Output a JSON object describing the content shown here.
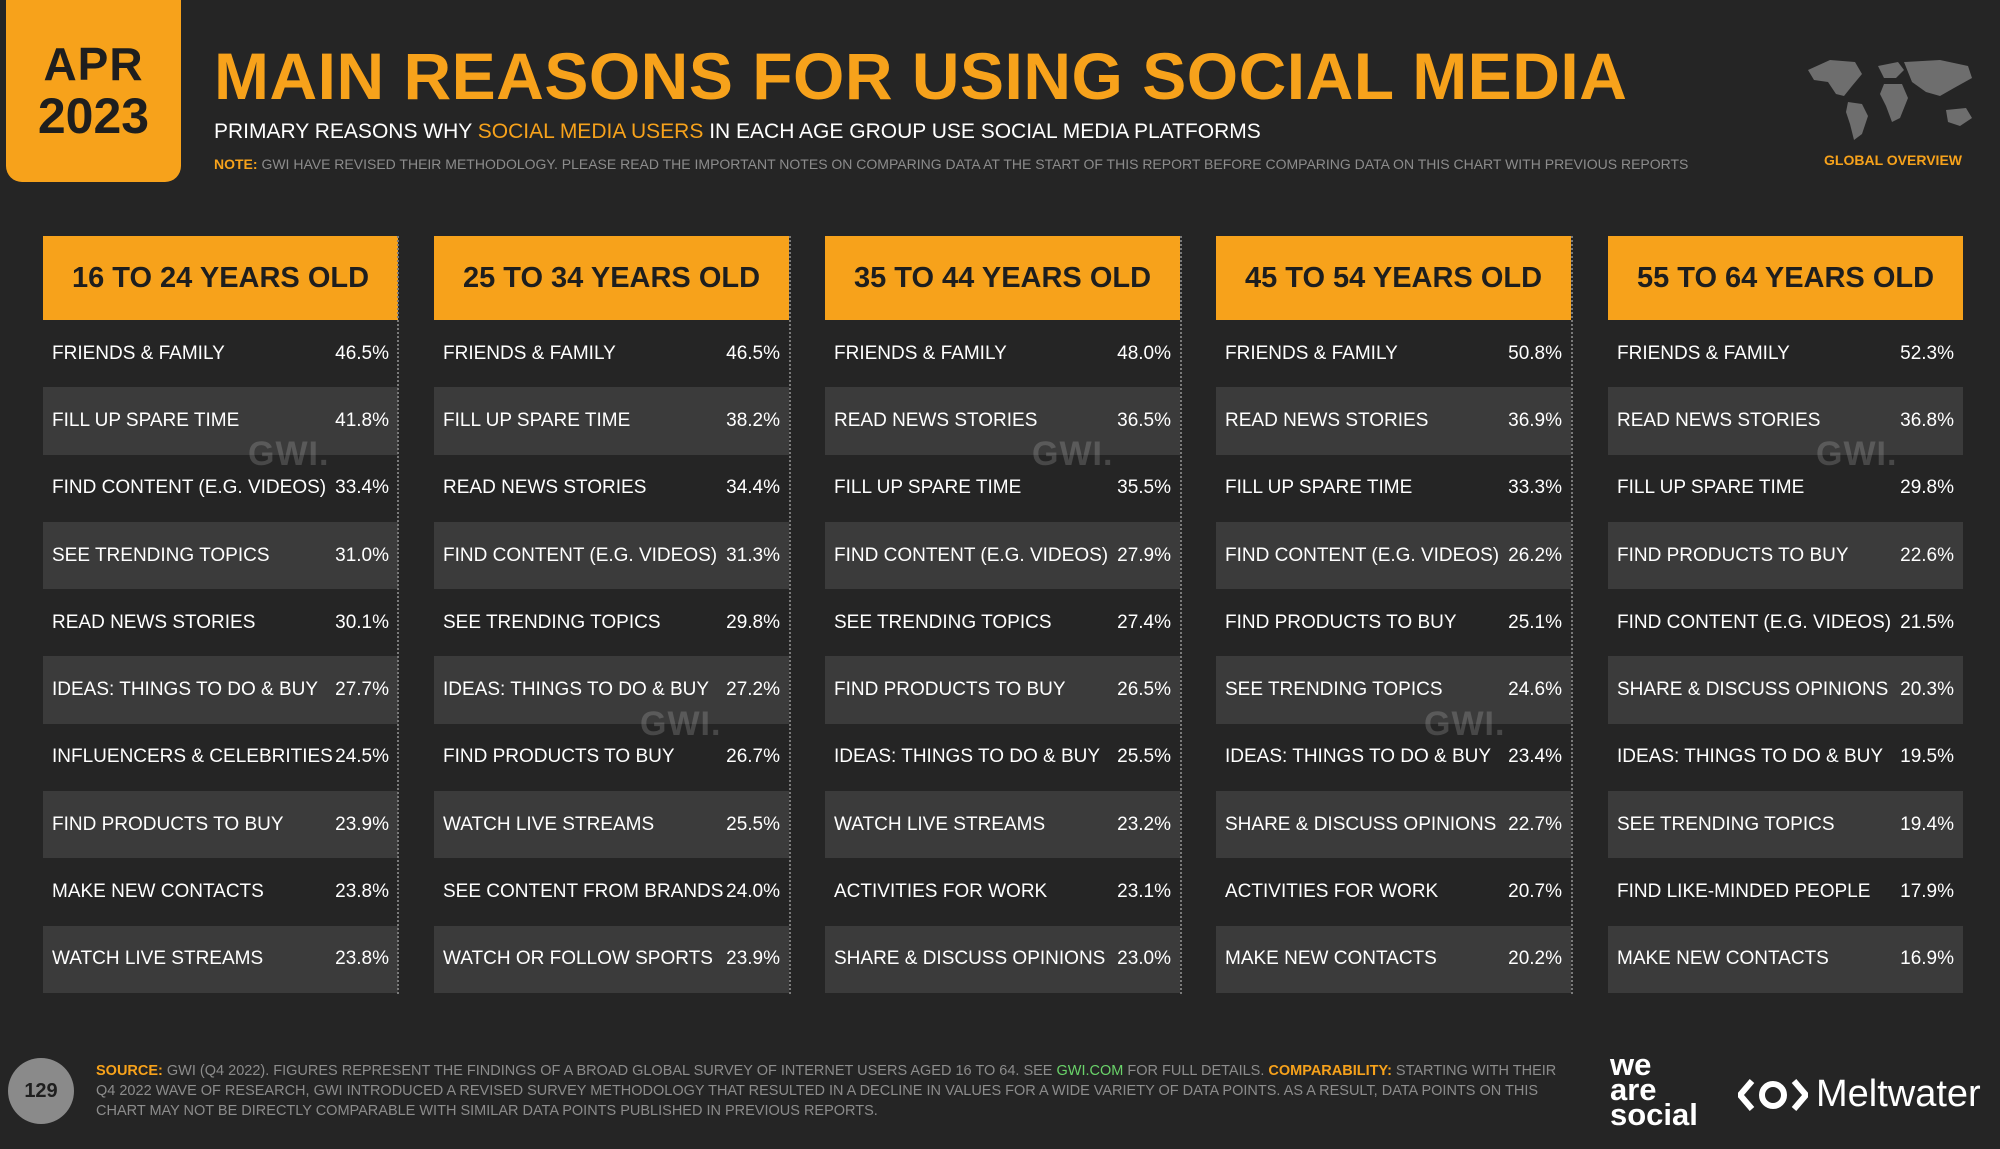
{
  "badge": {
    "month": "APR",
    "year": "2023"
  },
  "header": {
    "title": "MAIN REASONS FOR USING SOCIAL MEDIA",
    "subtitle_pre": "PRIMARY REASONS WHY ",
    "subtitle_hl": "SOCIAL MEDIA USERS",
    "subtitle_post": " IN EACH AGE GROUP USE SOCIAL MEDIA PLATFORMS",
    "note_label": "NOTE:",
    "note_text": " GWI HAVE REVISED THEIR METHODOLOGY. PLEASE READ THE IMPORTANT NOTES ON COMPARING DATA AT THE START OF THIS REPORT BEFORE COMPARING DATA ON THIS CHART WITH PREVIOUS REPORTS",
    "global_label": "GLOBAL OVERVIEW",
    "map_icon": "world-map-icon"
  },
  "watermark": "GWI.",
  "chart_data": {
    "type": "table",
    "unit": "%",
    "columns": [
      {
        "title": "16 TO 24 YEARS OLD",
        "rows": [
          {
            "label": "FRIENDS & FAMILY",
            "value": "46.5%"
          },
          {
            "label": "FILL UP SPARE TIME",
            "value": "41.8%"
          },
          {
            "label": "FIND CONTENT (E.G. VIDEOS)",
            "value": "33.4%"
          },
          {
            "label": "SEE TRENDING TOPICS",
            "value": "31.0%"
          },
          {
            "label": "READ NEWS STORIES",
            "value": "30.1%"
          },
          {
            "label": "IDEAS: THINGS TO DO & BUY",
            "value": "27.7%"
          },
          {
            "label": "INFLUENCERS & CELEBRITIES",
            "value": "24.5%"
          },
          {
            "label": "FIND PRODUCTS TO BUY",
            "value": "23.9%"
          },
          {
            "label": "MAKE NEW CONTACTS",
            "value": "23.8%"
          },
          {
            "label": "WATCH LIVE STREAMS",
            "value": "23.8%"
          }
        ]
      },
      {
        "title": "25 TO 34 YEARS OLD",
        "rows": [
          {
            "label": "FRIENDS & FAMILY",
            "value": "46.5%"
          },
          {
            "label": "FILL UP SPARE TIME",
            "value": "38.2%"
          },
          {
            "label": "READ NEWS STORIES",
            "value": "34.4%"
          },
          {
            "label": "FIND CONTENT (E.G. VIDEOS)",
            "value": "31.3%"
          },
          {
            "label": "SEE TRENDING TOPICS",
            "value": "29.8%"
          },
          {
            "label": "IDEAS: THINGS TO DO & BUY",
            "value": "27.2%"
          },
          {
            "label": "FIND PRODUCTS TO BUY",
            "value": "26.7%"
          },
          {
            "label": "WATCH LIVE STREAMS",
            "value": "25.5%"
          },
          {
            "label": "SEE CONTENT FROM BRANDS",
            "value": "24.0%"
          },
          {
            "label": "WATCH OR FOLLOW SPORTS",
            "value": "23.9%"
          }
        ]
      },
      {
        "title": "35 TO 44 YEARS OLD",
        "rows": [
          {
            "label": "FRIENDS & FAMILY",
            "value": "48.0%"
          },
          {
            "label": "READ NEWS STORIES",
            "value": "36.5%"
          },
          {
            "label": "FILL UP SPARE TIME",
            "value": "35.5%"
          },
          {
            "label": "FIND CONTENT (E.G. VIDEOS)",
            "value": "27.9%"
          },
          {
            "label": "SEE TRENDING TOPICS",
            "value": "27.4%"
          },
          {
            "label": "FIND PRODUCTS TO BUY",
            "value": "26.5%"
          },
          {
            "label": "IDEAS: THINGS TO DO & BUY",
            "value": "25.5%"
          },
          {
            "label": "WATCH LIVE STREAMS",
            "value": "23.2%"
          },
          {
            "label": "ACTIVITIES FOR WORK",
            "value": "23.1%"
          },
          {
            "label": "SHARE & DISCUSS OPINIONS",
            "value": "23.0%"
          }
        ]
      },
      {
        "title": "45 TO 54 YEARS OLD",
        "rows": [
          {
            "label": "FRIENDS & FAMILY",
            "value": "50.8%"
          },
          {
            "label": "READ NEWS STORIES",
            "value": "36.9%"
          },
          {
            "label": "FILL UP SPARE TIME",
            "value": "33.3%"
          },
          {
            "label": "FIND CONTENT (E.G. VIDEOS)",
            "value": "26.2%"
          },
          {
            "label": "FIND PRODUCTS TO BUY",
            "value": "25.1%"
          },
          {
            "label": "SEE TRENDING TOPICS",
            "value": "24.6%"
          },
          {
            "label": "IDEAS: THINGS TO DO & BUY",
            "value": "23.4%"
          },
          {
            "label": "SHARE & DISCUSS OPINIONS",
            "value": "22.7%"
          },
          {
            "label": "ACTIVITIES FOR WORK",
            "value": "20.7%"
          },
          {
            "label": "MAKE NEW CONTACTS",
            "value": "20.2%"
          }
        ]
      },
      {
        "title": "55 TO 64 YEARS OLD",
        "rows": [
          {
            "label": "FRIENDS & FAMILY",
            "value": "52.3%"
          },
          {
            "label": "READ NEWS STORIES",
            "value": "36.8%"
          },
          {
            "label": "FILL UP SPARE TIME",
            "value": "29.8%"
          },
          {
            "label": "FIND PRODUCTS TO BUY",
            "value": "22.6%"
          },
          {
            "label": "FIND CONTENT (E.G. VIDEOS)",
            "value": "21.5%"
          },
          {
            "label": "SHARE & DISCUSS OPINIONS",
            "value": "20.3%"
          },
          {
            "label": "IDEAS: THINGS TO DO & BUY",
            "value": "19.5%"
          },
          {
            "label": "SEE TRENDING TOPICS",
            "value": "19.4%"
          },
          {
            "label": "FIND LIKE-MINDED PEOPLE",
            "value": "17.9%"
          },
          {
            "label": "MAKE NEW CONTACTS",
            "value": "16.9%"
          }
        ]
      }
    ]
  },
  "footer": {
    "page_number": "129",
    "source_label": "SOURCE:",
    "source_text_1": " GWI (Q4 2022). FIGURES REPRESENT THE FINDINGS OF A BROAD GLOBAL SURVEY OF INTERNET USERS AGED 16 TO 64. SEE ",
    "source_link": "GWI.COM",
    "source_text_2": " FOR FULL DETAILS. ",
    "comparability_label": "COMPARABILITY:",
    "comparability_text": " STARTING WITH THEIR Q4 2022 WAVE OF RESEARCH, GWI INTRODUCED A REVISED SURVEY METHODOLOGY THAT RESULTED IN A DECLINE IN VALUES FOR A WIDE VARIETY OF DATA POINTS. AS A RESULT, DATA POINTS ON THIS CHART MAY NOT BE DIRECTLY COMPARABLE WITH SIMILAR DATA POINTS PUBLISHED IN PREVIOUS REPORTS.",
    "logo_was_1": "we",
    "logo_was_2": "are",
    "logo_was_3": "social",
    "logo_meltwater": "Meltwater"
  },
  "colors": {
    "accent": "#f7a21b",
    "background": "#252525",
    "row_alt": "#3b3b3b",
    "link": "#6ad36a"
  }
}
